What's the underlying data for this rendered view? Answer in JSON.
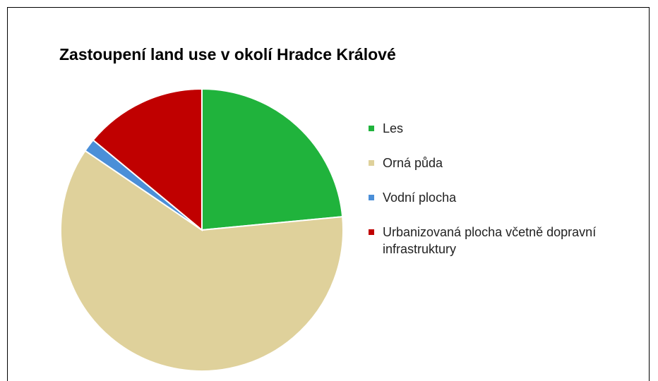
{
  "chart_data": {
    "type": "pie",
    "title": "Zastoupení land use v okolí Hradce Králové",
    "categories": [
      "Les",
      "Orná půda",
      "Vodní plocha",
      "Urbanizovaná plocha včetně dopravní infrastruktury"
    ],
    "values": [
      23.5,
      61,
      1.5,
      14
    ],
    "colors": [
      "#20b33c",
      "#dfd19b",
      "#4b8fd8",
      "#c00000"
    ],
    "legend": "right"
  }
}
